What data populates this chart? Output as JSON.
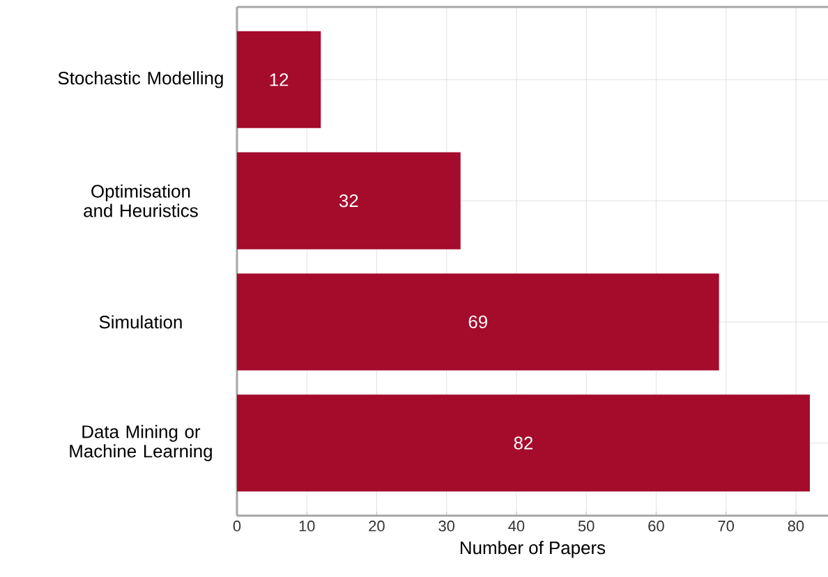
{
  "chart_data": {
    "type": "bar",
    "orientation": "horizontal",
    "xlabel": "Number of Papers",
    "categories": [
      "Stochastic Modelling",
      "Optimisation and Heuristics",
      "Simulation",
      "Data Mining or Machine Learning"
    ],
    "values": [
      12,
      32,
      69,
      82
    ],
    "color": "#a50b2b",
    "data_labels": true,
    "grid": true,
    "xlim": [
      0,
      84.6
    ],
    "xticks": [
      0,
      10,
      20,
      30,
      40,
      50,
      60,
      70,
      80
    ]
  }
}
